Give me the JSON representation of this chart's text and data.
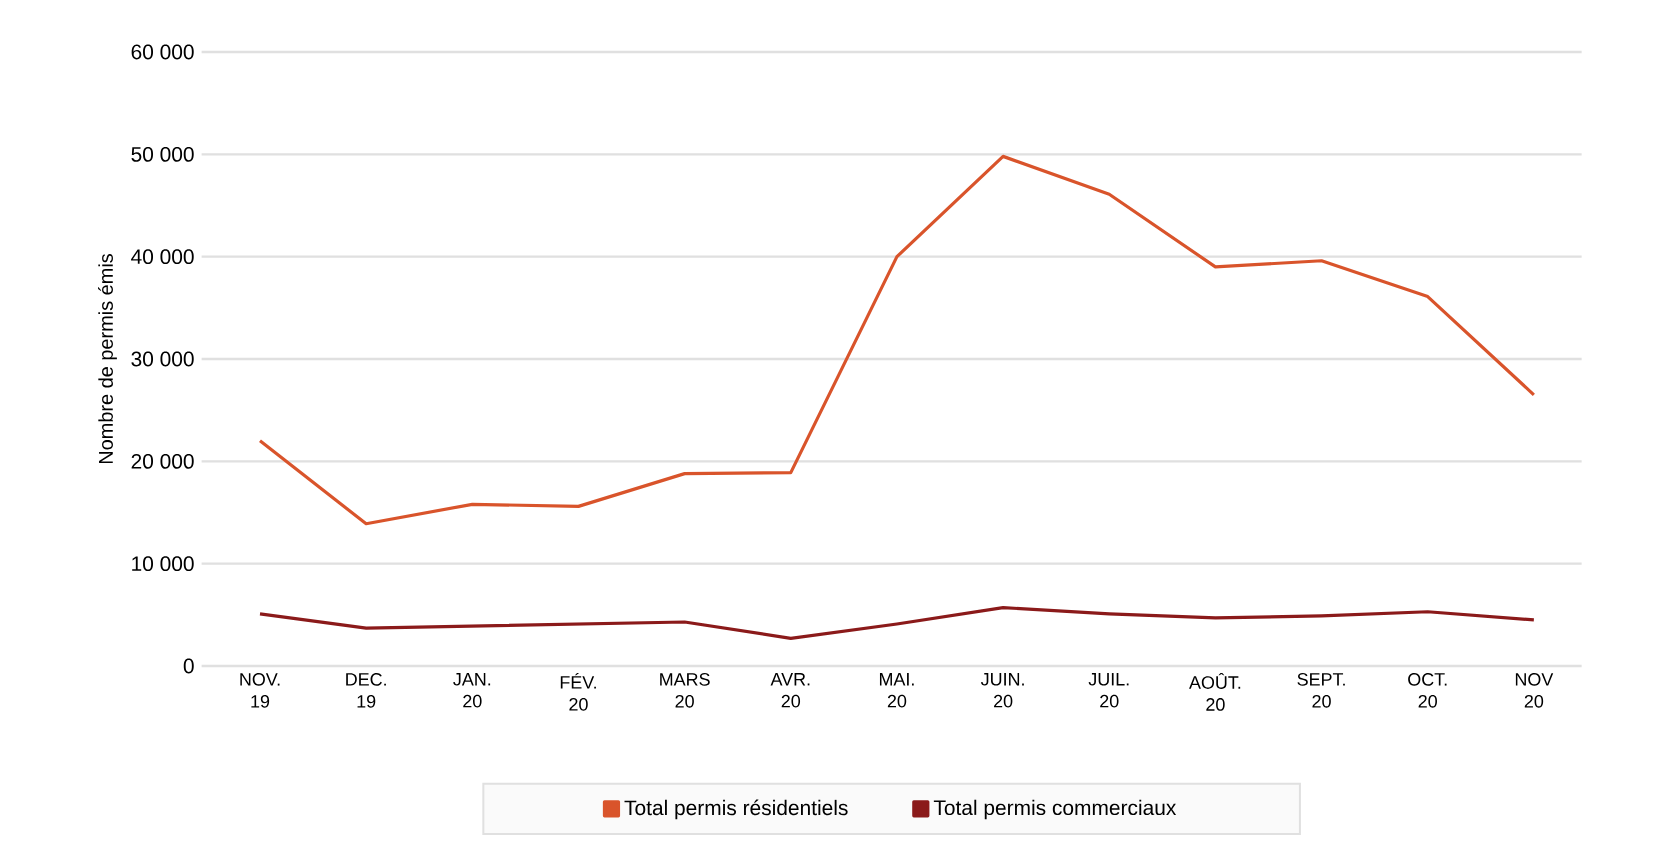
{
  "chart_data": {
    "type": "line",
    "ylabel": "Nombre de permis émis",
    "categories": [
      "NOV. 19",
      "DEC. 19",
      "JAN. 20",
      "FÉV. 20",
      "MARS 20",
      "AVR. 20",
      "MAI. 20",
      "JUIN. 20",
      "JUIL. 20",
      "AOÛT. 20",
      "SEPT. 20",
      "OCT. 20",
      "NOV 20"
    ],
    "series": [
      {
        "name": "Total permis résidentiels",
        "color": "#d9542b",
        "values": [
          22000,
          13900,
          15800,
          15600,
          18800,
          18900,
          40000,
          49800,
          46100,
          39000,
          39600,
          36100,
          26500
        ]
      },
      {
        "name": "Total permis commerciaux",
        "color": "#8b1a1a",
        "values": [
          5100,
          3700,
          3900,
          4100,
          4300,
          2700,
          4100,
          5700,
          5100,
          4700,
          4900,
          5300,
          4500
        ]
      }
    ],
    "ylim": [
      0,
      60000
    ],
    "yticks": [
      {
        "value": 0,
        "label": "0"
      },
      {
        "value": 10000,
        "label": "10 000"
      },
      {
        "value": 20000,
        "label": "20 000"
      },
      {
        "value": 30000,
        "label": "30 000"
      },
      {
        "value": 40000,
        "label": "40 000"
      },
      {
        "value": 50000,
        "label": "50 000"
      },
      {
        "value": 60000,
        "label": "60 000"
      }
    ],
    "grid": "y",
    "legend": "bottom",
    "marker": "none",
    "line_style": "solid"
  }
}
